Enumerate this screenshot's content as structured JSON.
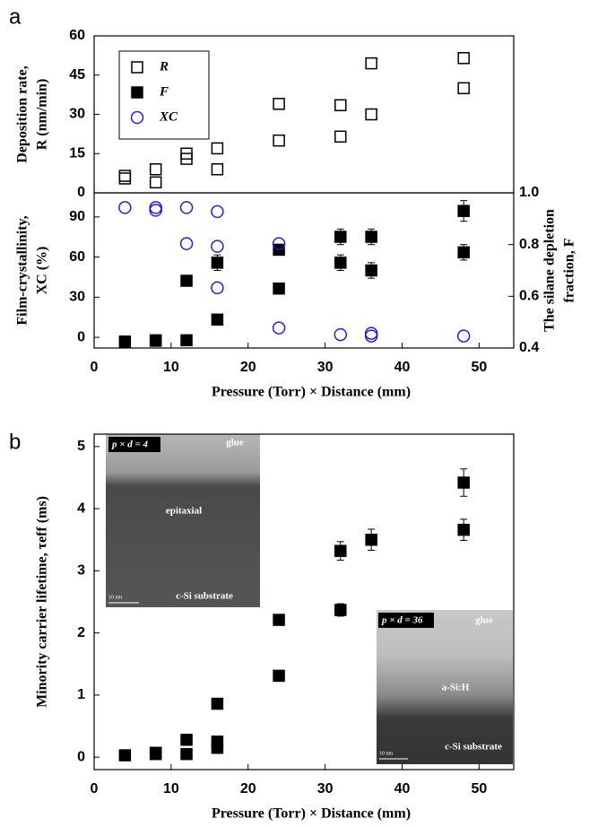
{
  "chart_data": [
    {
      "type": "scatter",
      "panel": "a",
      "ylabel": [
        "Deposition rate,",
        "R (nm/min)"
      ],
      "xlim": [
        0,
        54.5
      ],
      "ylim": [
        0,
        60
      ],
      "yticks": [
        0,
        15,
        30,
        45,
        60
      ],
      "legend": "upper left",
      "series": [
        {
          "name": "R",
          "color": "#000000",
          "marker": "open-square",
          "x": [
            4,
            4,
            8,
            8,
            12,
            12,
            16,
            16,
            24,
            24,
            32,
            32,
            36,
            36,
            48,
            48
          ],
          "values": [
            6.5,
            5.5,
            9,
            4,
            15,
            13,
            17,
            9,
            34,
            20,
            33.5,
            21.5,
            49.5,
            30,
            51.5,
            40
          ]
        }
      ]
    },
    {
      "type": "scatter",
      "ylabel": [
        "Film-crystallinity,",
        "XC (%)"
      ],
      "y2label": [
        "The silane depletion",
        "fraction, F"
      ],
      "xlabel": "Pressure (Torr) × Distance (mm)",
      "xlim": [
        0,
        54.5
      ],
      "xticks": [
        0,
        10,
        20,
        30,
        40,
        50
      ],
      "ylim": [
        -8,
        108
      ],
      "yticks": [
        0,
        30,
        60,
        90
      ],
      "y2lim": [
        0.4,
        1.0
      ],
      "y2ticks": [
        0.4,
        0.6,
        0.8,
        {
          "value": 1,
          "label": "1.0"
        }
      ],
      "series": [
        {
          "name": "F",
          "color": "#000000",
          "marker": "filled-square",
          "axis": "y2",
          "x": [
            4,
            8,
            8,
            12,
            12,
            16,
            16,
            24,
            24,
            32,
            32,
            36,
            36,
            48,
            48
          ],
          "values": [
            0.425,
            0.428,
            0.43,
            0.43,
            0.66,
            0.51,
            0.73,
            0.63,
            0.78,
            0.83,
            0.73,
            0.83,
            0.7,
            0.93,
            0.77
          ],
          "errors": [
            null,
            null,
            null,
            null,
            0.02,
            0.015,
            0.03,
            0.02,
            0.02,
            0.03,
            0.03,
            0.03,
            0.03,
            0.04,
            0.03
          ]
        },
        {
          "name": "XC",
          "color": "#1f1fe0",
          "marker": "open-circle",
          "x": [
            4,
            8,
            8,
            12,
            12,
            16,
            16,
            16,
            24,
            24,
            32,
            36,
            36,
            48
          ],
          "values": [
            97,
            97,
            95,
            97,
            70,
            94,
            68,
            37,
            70,
            7,
            2,
            3,
            1,
            1
          ]
        }
      ]
    },
    {
      "type": "scatter",
      "panel": "b",
      "ylabel": "Minority carrier lifetime, τeff (ms)",
      "xlabel": "Pressure (Torr) × Distance (mm)",
      "xlim": [
        0,
        54.5
      ],
      "xticks": [
        0,
        10,
        20,
        30,
        40,
        50
      ],
      "ylim": [
        -0.2,
        5.2
      ],
      "yticks": [
        0,
        1,
        2,
        3,
        4,
        5
      ],
      "series": [
        {
          "color": "#000000",
          "marker": "filled-square",
          "x": [
            4,
            8,
            8,
            12,
            12,
            16,
            16,
            16,
            24,
            24,
            32,
            32,
            36,
            48,
            48
          ],
          "values": [
            0.03,
            0.05,
            0.07,
            0.05,
            0.28,
            0.86,
            0.25,
            0.15,
            2.21,
            1.31,
            3.32,
            2.37,
            3.5,
            4.42,
            3.66
          ],
          "errors": [
            null,
            null,
            null,
            null,
            null,
            null,
            null,
            null,
            0.07,
            null,
            0.15,
            0.1,
            0.17,
            0.22,
            0.17
          ]
        }
      ],
      "insets": [
        {
          "label": "p × d = 4",
          "texts": [
            "glue",
            "epitaxial",
            "c-Si substrate"
          ],
          "scale": "10 nm"
        },
        {
          "label": "p × d = 36",
          "texts": [
            "glue",
            "a-Si:H",
            "c-Si substrate"
          ],
          "scale": "10 nm"
        }
      ]
    }
  ]
}
